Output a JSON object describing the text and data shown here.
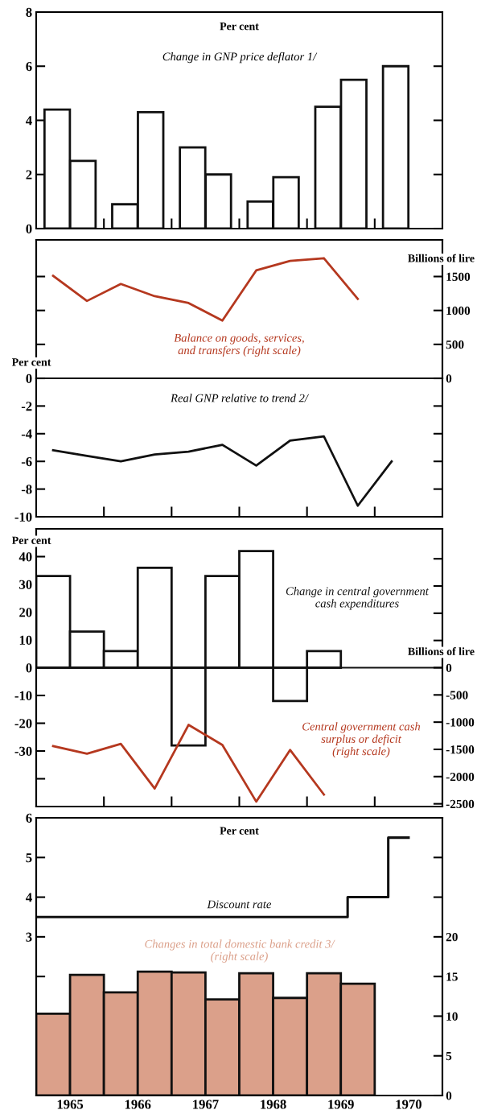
{
  "chart_data": [
    {
      "type": "bar",
      "title": "Change in GNP price deflator 1/",
      "ylabel": "Per cent",
      "xlim": [
        1965,
        1971
      ],
      "xticks": [
        {
          "value": 1966,
          "label": null
        },
        {
          "value": 1967,
          "label": null
        },
        {
          "value": 1968,
          "label": null
        },
        {
          "value": 1969,
          "label": null
        },
        {
          "value": 1970,
          "label": null
        }
      ],
      "ylim": [
        0,
        8
      ],
      "yticks": [
        0,
        2,
        4,
        6,
        8
      ],
      "tick_labels": "y",
      "series": [
        {
          "type": "bar",
          "color": "#ffffff",
          "x": [
            1965.31,
            1965.69,
            1966.31,
            1966.69,
            1967.31,
            1967.69,
            1968.31,
            1968.69,
            1969.31,
            1969.69,
            1970.31
          ],
          "values": [
            4.4,
            2.5,
            0.9,
            4.3,
            3.0,
            2.0,
            1.0,
            1.9,
            4.5,
            5.5,
            6.0
          ]
        }
      ]
    },
    {
      "type": "line",
      "xlim": [
        1965,
        1971
      ],
      "y2lim": [
        0,
        2040
      ],
      "y2ticks": [
        0,
        500,
        1000,
        1500
      ],
      "y2label": "Billions of lire",
      "tick_labels": "y",
      "series": [
        {
          "type": "line",
          "name": "Balance on goods, services,\nand transfers (right scale)",
          "color": "#b5381f",
          "axis": "y2",
          "x": [
            1965.25,
            1965.75,
            1966.25,
            1966.75,
            1967.25,
            1967.75,
            1968.25,
            1968.75,
            1969.25,
            1969.75
          ],
          "values": [
            1510,
            1140,
            1390,
            1210,
            1110,
            850,
            1590,
            1730,
            1770,
            1170
          ]
        }
      ]
    },
    {
      "type": "line",
      "title": "Real GNP relative to trend 2/",
      "ylabel": "Per cent",
      "xlim": [
        1965,
        1971
      ],
      "xticks": [
        {
          "value": 1966,
          "label": null
        },
        {
          "value": 1967,
          "label": null
        },
        {
          "value": 1968,
          "label": null
        },
        {
          "value": 1969,
          "label": null
        },
        {
          "value": 1970,
          "label": null
        }
      ],
      "ylim": [
        -10,
        0
      ],
      "yticks": [
        0,
        -2,
        -4,
        -6,
        -8,
        -10
      ],
      "tick_labels": "y",
      "series": [
        {
          "type": "line",
          "color": "#111111",
          "x": [
            1965.25,
            1965.75,
            1966.25,
            1966.75,
            1967.25,
            1967.75,
            1968.25,
            1968.75,
            1969.25,
            1969.75,
            1970.25
          ],
          "values": [
            -5.2,
            -5.6,
            -6.0,
            -5.5,
            -5.3,
            -4.8,
            -6.3,
            -4.5,
            -4.2,
            -9.2,
            -6.0
          ]
        }
      ]
    },
    {
      "type": "bar",
      "ylabel": "Per cent",
      "y2label": "Billions of lire",
      "xlim": [
        1965,
        1971
      ],
      "xticks": [
        {
          "value": 1966,
          "label": null
        },
        {
          "value": 1967,
          "label": null
        },
        {
          "value": 1968,
          "label": null
        },
        {
          "value": 1969,
          "label": null
        },
        {
          "value": 1970,
          "label": null
        }
      ],
      "ylim": [
        -50,
        50
      ],
      "yticks": [
        40,
        30,
        20,
        10,
        0,
        -10,
        -20,
        -30,
        {
          "value": -40,
          "label": null
        }
      ],
      "y2lim": [
        -2550,
        2550
      ],
      "y2ticks": [
        {
          "value": 2000,
          "label": null
        },
        {
          "value": 1500,
          "label": null
        },
        {
          "value": 1000,
          "label": null
        },
        {
          "value": 500,
          "label": null
        },
        0,
        -500,
        -1000,
        -1500,
        -2000,
        -2500
      ],
      "tick_labels": "y",
      "series": [
        {
          "type": "bar",
          "name": "Change in central government\ncash expenditures",
          "color": "#ffffff",
          "x": [
            1965.25,
            1965.75,
            1966.25,
            1966.75,
            1967.25,
            1967.75,
            1968.25,
            1968.75,
            1969.25
          ],
          "values": [
            33,
            13,
            6,
            36,
            -28,
            33,
            42,
            -12,
            6
          ]
        },
        {
          "type": "line",
          "name": "Central government cash\nsurplus or deficit\n(right scale)",
          "color": "#b5381f",
          "axis": "y2",
          "x": [
            1965.25,
            1965.75,
            1966.25,
            1966.75,
            1967.25,
            1967.75,
            1968.25,
            1968.75,
            1969.25
          ],
          "values": [
            -1440,
            -1580,
            -1400,
            -2220,
            -1050,
            -1420,
            -2460,
            -1510,
            -2330
          ]
        }
      ]
    },
    {
      "type": "bar",
      "ylabel": "Per cent",
      "xlim": [
        1965,
        1971
      ],
      "xticks": [
        {
          "value": 1965.5,
          "label": "1965"
        },
        {
          "value": 1966.5,
          "label": "1966"
        },
        {
          "value": 1967.5,
          "label": "1967"
        },
        {
          "value": 1968.5,
          "label": "1968"
        },
        {
          "value": 1969.5,
          "label": "1969"
        },
        {
          "value": 1970.5,
          "label": "1970"
        }
      ],
      "ylim": [
        -1,
        6
      ],
      "yticks": [
        {
          "value": 0,
          "label": null
        },
        {
          "value": 2,
          "label": null
        },
        3,
        4,
        5,
        6
      ],
      "y2lim": [
        0,
        35
      ],
      "y2ticks": [
        0,
        5,
        10,
        15,
        20,
        {
          "value": 25,
          "label": null
        },
        {
          "value": 30,
          "label": null
        }
      ],
      "series": [
        {
          "type": "bar",
          "name": "Changes in total domestic bank credit 3/\n(right scale)",
          "color": "#dba08a",
          "axis": "y2",
          "x": [
            1965.25,
            1965.75,
            1966.25,
            1966.75,
            1967.25,
            1967.75,
            1968.25,
            1968.75,
            1969.25,
            1969.75
          ],
          "values": [
            10.3,
            15.2,
            13.0,
            15.6,
            15.5,
            12.1,
            15.4,
            12.3,
            15.4,
            14.1
          ]
        },
        {
          "type": "step",
          "name": "Discount rate",
          "color": "#111111",
          "x": [
            1965.0,
            1969.6,
            1970.2,
            1970.5
          ],
          "values": [
            3.5,
            4.0,
            5.5,
            5.5
          ]
        }
      ]
    }
  ]
}
